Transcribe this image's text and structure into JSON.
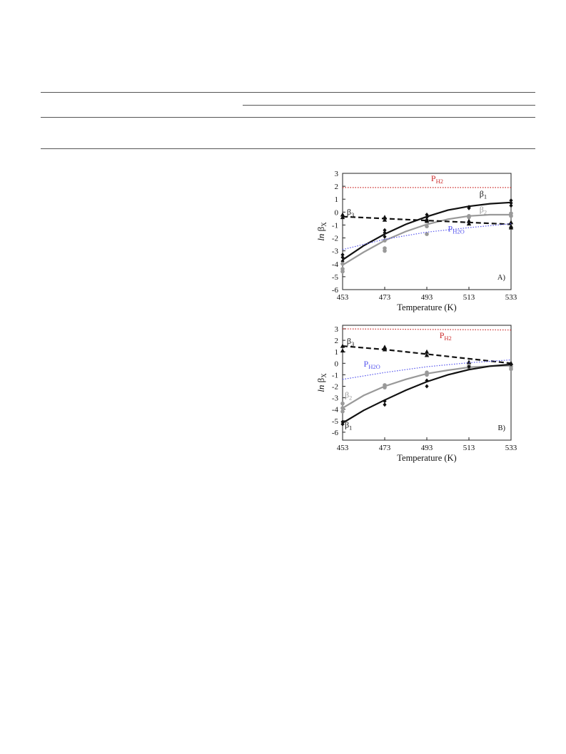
{
  "colors": {
    "axis": "#222222",
    "beta1": "#111111",
    "beta2": "#999999",
    "beta3": "#111111",
    "ph2": "#cc2a2a",
    "ph2o": "#5555ee"
  },
  "chart_data": [
    {
      "type": "line",
      "panel_label": "A)",
      "xlabel": "Temperature (K)",
      "ylabel": {
        "italic": "ln",
        "symbol": "β",
        "sub": "X"
      },
      "x_ticks": [
        453,
        473,
        493,
        513,
        533
      ],
      "y_ticks": [
        3,
        2,
        1,
        0,
        -1,
        -2,
        -3,
        -4,
        -5,
        -6
      ],
      "xlim": [
        453,
        533
      ],
      "ylim": [
        -6,
        3
      ],
      "series": [
        {
          "key": "ph2",
          "label": "P",
          "sub": "H2",
          "style": "dotted",
          "label_x": 495,
          "label_y": 2.4,
          "fit": {
            "x": [
              453,
              533
            ],
            "y": [
              1.9,
              1.9
            ]
          },
          "points": []
        },
        {
          "key": "beta1",
          "label": "β",
          "sub": "1",
          "style": "solid-dark",
          "label_x": 518,
          "label_y": 1.2,
          "fit": {
            "x": [
              453,
              463,
              473,
              483,
              493,
              503,
              513,
              523,
              533
            ],
            "y": [
              -3.7,
              -2.6,
              -1.7,
              -0.95,
              -0.35,
              0.15,
              0.45,
              0.65,
              0.75
            ]
          },
          "points": [
            {
              "x": 453,
              "y": -3.3
            },
            {
              "x": 453,
              "y": -3.5
            },
            {
              "x": 453,
              "y": -3.8
            },
            {
              "x": 473,
              "y": -1.4
            },
            {
              "x": 473,
              "y": -1.6
            },
            {
              "x": 473,
              "y": -1.9
            },
            {
              "x": 493,
              "y": -0.2
            },
            {
              "x": 493,
              "y": -0.4
            },
            {
              "x": 493,
              "y": -0.6
            },
            {
              "x": 513,
              "y": 0.4
            },
            {
              "x": 513,
              "y": 0.3
            },
            {
              "x": 533,
              "y": 0.9
            },
            {
              "x": 533,
              "y": 0.7
            },
            {
              "x": 533,
              "y": 0.5
            }
          ]
        },
        {
          "key": "beta2",
          "label": "β",
          "sub": "2",
          "style": "solid-gray",
          "label_x": 518,
          "label_y": 0.0,
          "fit": {
            "x": [
              453,
              463,
              473,
              483,
              493,
              503,
              513,
              523,
              533
            ],
            "y": [
              -4.1,
              -3.1,
              -2.2,
              -1.5,
              -0.95,
              -0.55,
              -0.3,
              -0.2,
              -0.2
            ]
          },
          "points": [
            {
              "x": 453,
              "y": -4.0
            },
            {
              "x": 453,
              "y": -4.4
            },
            {
              "x": 453,
              "y": -4.6
            },
            {
              "x": 473,
              "y": -2.2
            },
            {
              "x": 473,
              "y": -2.8
            },
            {
              "x": 473,
              "y": -3.0
            },
            {
              "x": 493,
              "y": -1.1
            },
            {
              "x": 493,
              "y": -1.7
            },
            {
              "x": 513,
              "y": -0.3
            },
            {
              "x": 513,
              "y": -0.4
            },
            {
              "x": 533,
              "y": -0.1
            },
            {
              "x": 533,
              "y": -0.3
            }
          ]
        },
        {
          "key": "beta3",
          "label": "β",
          "sub": "3",
          "style": "dashed",
          "label_x": 455,
          "label_y": -0.2,
          "fit": {
            "x": [
              453,
              473,
              493,
              513,
              533
            ],
            "y": [
              -0.35,
              -0.5,
              -0.65,
              -0.8,
              -0.95
            ]
          },
          "points": [
            {
              "x": 453,
              "y": -0.2
            },
            {
              "x": 453,
              "y": -0.4
            },
            {
              "x": 473,
              "y": -0.4
            },
            {
              "x": 473,
              "y": -0.6
            },
            {
              "x": 493,
              "y": -0.6
            },
            {
              "x": 493,
              "y": -0.7
            },
            {
              "x": 513,
              "y": -0.7
            },
            {
              "x": 513,
              "y": -0.9
            },
            {
              "x": 533,
              "y": -0.8
            },
            {
              "x": 533,
              "y": -1.1
            },
            {
              "x": 533,
              "y": -1.2
            }
          ]
        },
        {
          "key": "ph2o",
          "label": "P",
          "sub": "H2O",
          "style": "dotted",
          "label_x": 503,
          "label_y": -1.5,
          "fit": {
            "x": [
              453,
              473,
              493,
              513,
              533
            ],
            "y": [
              -2.9,
              -2.1,
              -1.55,
              -1.2,
              -0.9
            ]
          },
          "points": []
        }
      ]
    },
    {
      "type": "line",
      "panel_label": "B)",
      "xlabel": "Temperature (K)",
      "ylabel": {
        "italic": "ln",
        "symbol": "β",
        "sub": "X"
      },
      "x_ticks": [
        453,
        473,
        493,
        513,
        533
      ],
      "y_ticks": [
        3,
        2,
        1,
        0,
        -1,
        -2,
        -3,
        -4,
        -5,
        -6
      ],
      "xlim": [
        453,
        533
      ],
      "ylim": [
        -6,
        3.5
      ],
      "series": [
        {
          "key": "ph2",
          "label": "P",
          "sub": "H2",
          "style": "dotted",
          "label_x": 499,
          "label_y": 2.2,
          "fit": {
            "x": [
              453,
              533
            ],
            "y": [
              3.0,
              2.9
            ]
          },
          "points": []
        },
        {
          "key": "beta3",
          "label": "β",
          "sub": "3",
          "style": "dashed",
          "label_x": 455,
          "label_y": 1.7,
          "fit": {
            "x": [
              453,
              473,
              493,
              513,
              533
            ],
            "y": [
              1.5,
              1.2,
              0.8,
              0.4,
              0.0
            ]
          },
          "points": [
            {
              "x": 453,
              "y": 1.5
            },
            {
              "x": 453,
              "y": 1.1
            },
            {
              "x": 473,
              "y": 1.4
            },
            {
              "x": 473,
              "y": 1.2
            },
            {
              "x": 493,
              "y": 1.0
            },
            {
              "x": 493,
              "y": 0.7
            },
            {
              "x": 513,
              "y": 0.1
            },
            {
              "x": 533,
              "y": 0.0
            }
          ]
        },
        {
          "key": "ph2o",
          "label": "P",
          "sub": "H2O",
          "style": "dotted",
          "label_x": 463,
          "label_y": -0.3,
          "fit": {
            "x": [
              453,
              473,
              493,
              513,
              533
            ],
            "y": [
              -1.4,
              -0.8,
              -0.3,
              0.05,
              0.3
            ]
          },
          "points": []
        },
        {
          "key": "beta2",
          "label": "β",
          "sub": "2",
          "style": "solid-gray",
          "label_x": 454,
          "label_y": -3.0,
          "fit": {
            "x": [
              453,
              463,
              473,
              483,
              493,
              503,
              513,
              523,
              533
            ],
            "y": [
              -3.9,
              -2.8,
              -2.0,
              -1.4,
              -0.9,
              -0.6,
              -0.35,
              -0.25,
              -0.2
            ]
          },
          "points": [
            {
              "x": 453,
              "y": -3.5
            },
            {
              "x": 453,
              "y": -3.9
            },
            {
              "x": 453,
              "y": -4.2
            },
            {
              "x": 473,
              "y": -1.9
            },
            {
              "x": 473,
              "y": -2.1
            },
            {
              "x": 493,
              "y": -0.8
            },
            {
              "x": 493,
              "y": -1.0
            },
            {
              "x": 513,
              "y": -0.2
            },
            {
              "x": 513,
              "y": -0.4
            },
            {
              "x": 533,
              "y": -0.3
            },
            {
              "x": 533,
              "y": -0.5
            }
          ]
        },
        {
          "key": "beta1",
          "label": "β",
          "sub": "1",
          "style": "solid-dark",
          "label_x": 454,
          "label_y": -5.6,
          "fit": {
            "x": [
              453,
              463,
              473,
              483,
              493,
              503,
              513,
              523,
              533
            ],
            "y": [
              -5.2,
              -4.1,
              -3.2,
              -2.35,
              -1.6,
              -1.0,
              -0.55,
              -0.25,
              -0.1
            ]
          },
          "points": [
            {
              "x": 453,
              "y": -5.1
            },
            {
              "x": 453,
              "y": -5.3
            },
            {
              "x": 473,
              "y": -3.3
            },
            {
              "x": 473,
              "y": -3.6
            },
            {
              "x": 493,
              "y": -1.5
            },
            {
              "x": 493,
              "y": -2.0
            },
            {
              "x": 513,
              "y": -0.3
            },
            {
              "x": 533,
              "y": -0.1
            }
          ]
        }
      ]
    }
  ]
}
